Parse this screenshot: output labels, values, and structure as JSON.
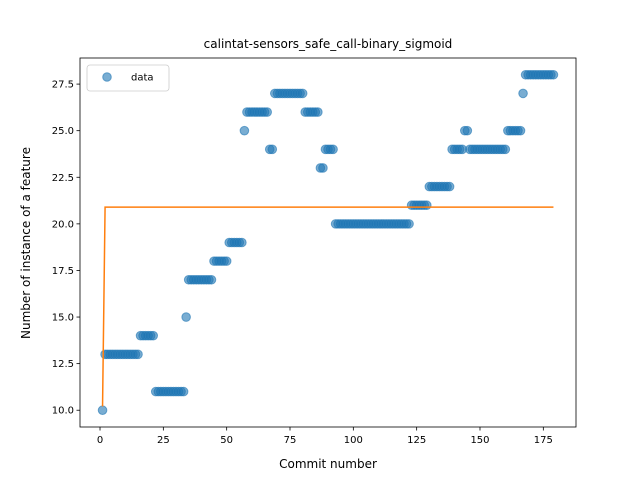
{
  "chart_data": {
    "type": "scatter",
    "title": "calintat-sensors_safe_call-binary_sigmoid",
    "xlabel": "Commit number",
    "ylabel": "Number of instance of a feature",
    "xlim": [
      -7.9,
      187.9
    ],
    "ylim": [
      9.1,
      28.9
    ],
    "xticks": [
      0,
      25,
      50,
      75,
      100,
      125,
      150,
      175
    ],
    "yticks": [
      {
        "value": 10,
        "label": "10.0"
      },
      12.5,
      {
        "value": 15,
        "label": "15.0"
      },
      17.5,
      {
        "value": 20,
        "label": "20.0"
      },
      22.5,
      {
        "value": 25,
        "label": "25.0"
      },
      27.5
    ],
    "legend": "upper left",
    "series": [
      {
        "name": "data",
        "type": "scatter",
        "color": "#1f77b4",
        "x": [
          1,
          2,
          3,
          4,
          5,
          6,
          7,
          8,
          9,
          10,
          11,
          12,
          13,
          14,
          15,
          16,
          17,
          18,
          19,
          20,
          21,
          22,
          23,
          24,
          25,
          26,
          27,
          28,
          29,
          30,
          31,
          32,
          33,
          34,
          35,
          36,
          37,
          38,
          39,
          40,
          41,
          42,
          43,
          44,
          45,
          46,
          47,
          48,
          49,
          50,
          51,
          52,
          53,
          54,
          55,
          56,
          57,
          58,
          59,
          60,
          61,
          62,
          63,
          64,
          65,
          66,
          67,
          68,
          69,
          70,
          71,
          72,
          73,
          74,
          75,
          76,
          77,
          78,
          79,
          80,
          81,
          82,
          83,
          84,
          85,
          86,
          87,
          88,
          89,
          90,
          91,
          92,
          93,
          94,
          95,
          96,
          97,
          98,
          99,
          100,
          101,
          102,
          103,
          104,
          105,
          106,
          107,
          108,
          109,
          110,
          111,
          112,
          113,
          114,
          115,
          116,
          117,
          118,
          119,
          120,
          121,
          122,
          123,
          124,
          125,
          126,
          127,
          128,
          129,
          130,
          131,
          132,
          133,
          134,
          135,
          136,
          137,
          138,
          139,
          140,
          141,
          142,
          143,
          144,
          145,
          146,
          147,
          148,
          149,
          150,
          151,
          152,
          153,
          154,
          155,
          156,
          157,
          158,
          159,
          160,
          161,
          162,
          163,
          164,
          165,
          166,
          167,
          168,
          169,
          170,
          171,
          172,
          173,
          174,
          175,
          176,
          177,
          178,
          179
        ],
        "values": [
          10,
          13,
          13,
          13,
          13,
          13,
          13,
          13,
          13,
          13,
          13,
          13,
          13,
          13,
          13,
          14,
          14,
          14,
          14,
          14,
          14,
          11,
          11,
          11,
          11,
          11,
          11,
          11,
          11,
          11,
          11,
          11,
          11,
          15,
          17,
          17,
          17,
          17,
          17,
          17,
          17,
          17,
          17,
          17,
          18,
          18,
          18,
          18,
          18,
          18,
          19,
          19,
          19,
          19,
          19,
          19,
          25,
          26,
          26,
          26,
          26,
          26,
          26,
          26,
          26,
          26,
          24,
          24,
          27,
          27,
          27,
          27,
          27,
          27,
          27,
          27,
          27,
          27,
          27,
          27,
          26,
          26,
          26,
          26,
          26,
          26,
          23,
          23,
          24,
          24,
          24,
          24,
          20,
          20,
          20,
          20,
          20,
          20,
          20,
          20,
          20,
          20,
          20,
          20,
          20,
          20,
          20,
          20,
          20,
          20,
          20,
          20,
          20,
          20,
          20,
          20,
          20,
          20,
          20,
          20,
          20,
          20,
          21,
          21,
          21,
          21,
          21,
          21,
          21,
          22,
          22,
          22,
          22,
          22,
          22,
          22,
          22,
          22,
          24,
          24,
          24,
          24,
          24,
          25,
          25,
          24,
          24,
          24,
          24,
          24,
          24,
          24,
          24,
          24,
          24,
          24,
          24,
          24,
          24,
          24,
          25,
          25,
          25,
          25,
          25,
          25,
          27,
          28,
          28,
          28,
          28,
          28,
          28,
          28,
          28,
          28,
          28,
          28,
          28
        ]
      },
      {
        "type": "line",
        "color": "#ff7f0e",
        "x": [
          1,
          2,
          179
        ],
        "values": [
          10.2,
          20.9,
          20.9
        ]
      }
    ]
  }
}
